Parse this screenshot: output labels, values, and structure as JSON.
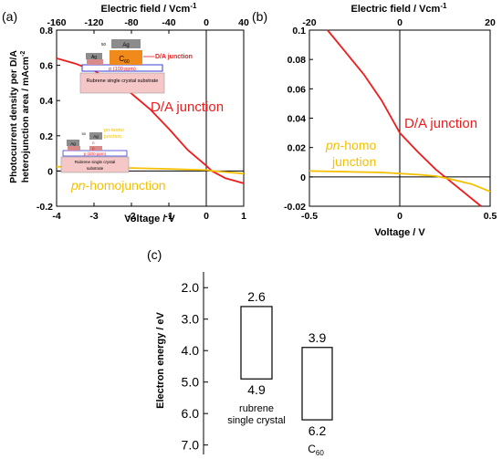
{
  "panels": [
    {
      "label": "(a)"
    },
    {
      "label": "(b)"
    },
    {
      "label": "(c)"
    }
  ],
  "inset_a": {
    "ag_top_label": "Ag",
    "c60_label": "C",
    "c60_sub": "60",
    "da_label": "D/A junction",
    "p_label": "p (100 ppm)",
    "substrate_label": "Rubrene single crystal substrate",
    "thickness_label": "50",
    "ag_left_label": "Ag",
    "n_label": "n",
    "p_small_label": "p"
  },
  "inset_b": {
    "ag_left_label": "Ag",
    "ag_right_label": "Ag",
    "thickness_label": "50",
    "pn_label_line1": "pn-homo",
    "pn_label_line2": "junction",
    "n_label": "n",
    "p_label": "p",
    "p100_label": "p (100 ppm)",
    "substrate_label_line1": "Rubrene single crystal",
    "substrate_label_line2": "substrate"
  },
  "chart_data": [
    {
      "type": "line",
      "panel": "(a)",
      "xlabel": "Voltage / V",
      "ylabel": "Photocurrent density per D/A heterojunction area / mAcm-2",
      "x2label": "Electric field / Vcm-1",
      "xlim": [
        -4,
        1
      ],
      "ylim": [
        -0.2,
        0.8
      ],
      "x2lim": [
        -160,
        40
      ],
      "xticks": [
        "-4",
        "-3",
        "-2",
        "-1",
        "0",
        "1"
      ],
      "yticks": [
        "-0.2",
        "0",
        "0.2",
        "0.4",
        "0.6",
        "0.8"
      ],
      "x2ticks": [
        "-160",
        "-120",
        "-80",
        "-40",
        "0",
        "40"
      ],
      "series": [
        {
          "name": "D/A junction",
          "color": "#ee1c1c",
          "x": [
            -4.0,
            -3.5,
            -3.0,
            -2.5,
            -2.0,
            -1.5,
            -1.0,
            -0.5,
            0.0,
            0.15,
            0.5,
            1.0
          ],
          "y": [
            0.64,
            0.61,
            0.57,
            0.51,
            0.44,
            0.35,
            0.24,
            0.12,
            0.03,
            0.0,
            -0.04,
            -0.07
          ]
        },
        {
          "name": "pn-homojunction",
          "color": "#f5c000",
          "x": [
            -4.0,
            -3.0,
            -2.0,
            -1.0,
            0.0,
            0.2,
            0.6,
            1.0
          ],
          "y": [
            0.025,
            0.02,
            0.017,
            0.012,
            0.005,
            0.0,
            -0.008,
            -0.015
          ]
        }
      ]
    },
    {
      "type": "line",
      "panel": "(b)",
      "xlabel": "Voltage / V",
      "x2label": "Electric field / Vcm-1",
      "xlim": [
        -0.5,
        0.5
      ],
      "ylim": [
        -0.02,
        0.1
      ],
      "x2lim": [
        -20,
        20
      ],
      "xticks": [
        "-0.5",
        "0",
        "0.5"
      ],
      "yticks": [
        "-0.02",
        "0",
        "0.02",
        "0.04",
        "0.06",
        "0.08",
        "0.1"
      ],
      "x2ticks": [
        "-20",
        "0",
        "20"
      ],
      "series": [
        {
          "name": "D/A junction",
          "color": "#ee1c1c",
          "x": [
            -0.4,
            -0.3,
            -0.2,
            -0.1,
            0.0,
            0.1,
            0.2,
            0.3,
            0.4,
            0.45
          ],
          "y": [
            0.1,
            0.085,
            0.07,
            0.052,
            0.03,
            0.017,
            0.005,
            -0.005,
            -0.015,
            -0.02
          ]
        },
        {
          "name": "pn-homo junction",
          "color": "#f5c000",
          "x": [
            -0.5,
            -0.3,
            -0.1,
            0.1,
            0.2,
            0.3,
            0.4,
            0.5
          ],
          "y": [
            0.004,
            0.0035,
            0.003,
            0.0015,
            0.0005,
            -0.002,
            -0.005,
            -0.01
          ]
        }
      ]
    },
    {
      "type": "bar",
      "panel": "(c)",
      "ylabel": "Electron energy / eV",
      "ylim": [
        1.5,
        7.3
      ],
      "yinverted": true,
      "yticks": [
        "2.0",
        "3.0",
        "4.0",
        "5.0",
        "6.0",
        "7.0"
      ],
      "bars": [
        {
          "name_line1": "rubrene",
          "name_line2": "single crystal",
          "top": 2.6,
          "bottom": 4.9,
          "top_label": "2.6",
          "bottom_label": "4.9"
        },
        {
          "name_line1": "C",
          "name_sub": "60",
          "top": 3.9,
          "bottom": 6.2,
          "top_label": "3.9",
          "bottom_label": "6.2"
        }
      ]
    }
  ]
}
